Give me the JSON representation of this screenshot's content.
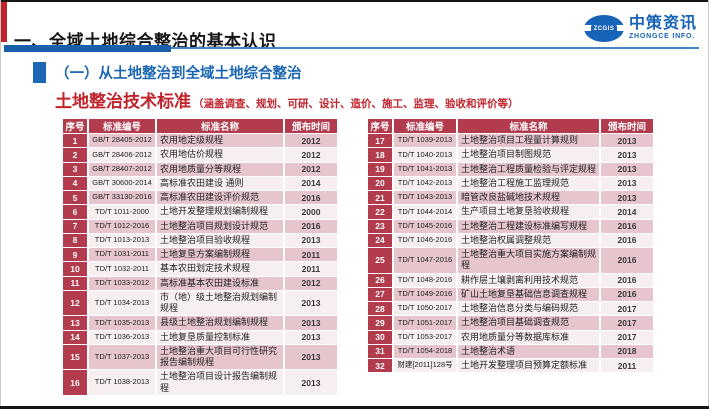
{
  "slide": {
    "title": "一、全域土地综合整治的基本认识",
    "section_title": "（一）从土地整治到全域土地综合整治",
    "subtitle": "土地整治技术标准",
    "subtitle_note": "（涵盖调查、规划、可研、设计、造价、施工、监理、验收和评价等）"
  },
  "logo": {
    "symbol_text": "ZCGIS",
    "name_cn": "中策资讯",
    "name_en": "ZHONGCE INFO."
  },
  "colors": {
    "header_red": "#b23b4d",
    "row_pink": "#e6c6cc",
    "row_light": "#f7eef0",
    "title_red": "#c0232c",
    "accent_blue": "#1b67b3",
    "logo_blue": "#1763b8"
  },
  "table_headers": [
    "序号",
    "标准编号",
    "标准名称",
    "颁布时间"
  ],
  "tables": [
    {
      "rows": [
        {
          "no": "1",
          "code": "GB/T 28405-2012",
          "name": "农用地定级规程",
          "year": "2012"
        },
        {
          "no": "2",
          "code": "GB/T 28406-2012",
          "name": "农用地估价规程",
          "year": "2012"
        },
        {
          "no": "3",
          "code": "GB/T 28407-2012",
          "name": "农用地质量分等规程",
          "year": "2012"
        },
        {
          "no": "4",
          "code": "GB/T 30600-2014",
          "name": "高标准农田建设 通则",
          "year": "2014"
        },
        {
          "no": "5",
          "code": "GB/T 33130-2016",
          "name": "高标准农田建设评价规范",
          "year": "2016"
        },
        {
          "no": "6",
          "code": "TD/T 1011-2000",
          "name": "土地开发整理规划编制规程",
          "year": "2000"
        },
        {
          "no": "7",
          "code": "TD/T 1012-2016",
          "name": "土地整治项目规划设计规范",
          "year": "2016"
        },
        {
          "no": "8",
          "code": "TD/T 1013-2013",
          "name": "土地整治项目验收规程",
          "year": "2013"
        },
        {
          "no": "9",
          "code": "TD/T 1031-2011",
          "name": "土地复垦方案编制规程",
          "year": "2011"
        },
        {
          "no": "10",
          "code": "TD/T 1032-2011",
          "name": "基本农田划定技术规程",
          "year": "2011"
        },
        {
          "no": "11",
          "code": "TD/T 1033-2012",
          "name": "高标准基本农田建设标准",
          "year": "2012"
        },
        {
          "no": "12",
          "code": "TD/T 1034-2013",
          "name": "市（地）级土地整治规划编制规程",
          "year": "2013"
        },
        {
          "no": "13",
          "code": "TD/T 1035-2013",
          "name": "县级土地整治规划编制规程",
          "year": "2013"
        },
        {
          "no": "14",
          "code": "TD/T 1036-2013",
          "name": "土地复垦质量控制标准",
          "year": "2013"
        },
        {
          "no": "15",
          "code": "TD/T 1037-2013",
          "name": "土地整治重大项目可行性研究报告编制规程",
          "year": "2013"
        },
        {
          "no": "16",
          "code": "TD/T 1038-2013",
          "name": "土地整治项目设计报告编制规程",
          "year": "2013"
        }
      ]
    },
    {
      "rows": [
        {
          "no": "17",
          "code": "TD/T 1039-2013",
          "name": "土地整治项目工程量计算规则",
          "year": "2013"
        },
        {
          "no": "18",
          "code": "TD/T 1040-2013",
          "name": "土地整治项目制图规范",
          "year": "2013"
        },
        {
          "no": "19",
          "code": "TD/T 1041-2013",
          "name": "土地整治工程质量检验与评定规程",
          "year": "2013"
        },
        {
          "no": "20",
          "code": "TD/T 1042-2013",
          "name": "土地整治工程施工监理规范",
          "year": "2013"
        },
        {
          "no": "21",
          "code": "TD/T 1043-2013",
          "name": "暗管改良盐碱地技术规程",
          "year": "2013"
        },
        {
          "no": "22",
          "code": "TD/T 1044-2014",
          "name": "生产项目土地复垦验收规程",
          "year": "2014"
        },
        {
          "no": "23",
          "code": "TD/T 1045-2016",
          "name": "土地整治工程建设标准编写规程",
          "year": "2016"
        },
        {
          "no": "24",
          "code": "TD/T 1046-2016",
          "name": "土地整治权属调整规范",
          "year": "2016"
        },
        {
          "no": "25",
          "code": "TD/T 1047-2016",
          "name": "土地整治重大项目实施方案编制规程",
          "year": "2016"
        },
        {
          "no": "26",
          "code": "TD/T 1048-2016",
          "name": "耕作层土壤剥离利用技术规范",
          "year": "2016"
        },
        {
          "no": "27",
          "code": "TD/T 1049-2016",
          "name": "矿山土地复垦基础信息调查规程",
          "year": "2016"
        },
        {
          "no": "28",
          "code": "TD/T 1050-2017",
          "name": "土地整治信息分类与编码规范",
          "year": "2017"
        },
        {
          "no": "29",
          "code": "TD/T 1051-2017",
          "name": "土地整治项目基础调查规范",
          "year": "2017"
        },
        {
          "no": "30",
          "code": "TD/T 1053-2017",
          "name": "农用地质量分等数据库标准",
          "year": "2017"
        },
        {
          "no": "31",
          "code": "TD/T 1054-2018",
          "name": "土地整治术语",
          "year": "2018"
        },
        {
          "no": "32",
          "code": "财建[2011]128号",
          "name": "土地开发整理项目预算定额标准",
          "year": "2011"
        }
      ]
    }
  ]
}
